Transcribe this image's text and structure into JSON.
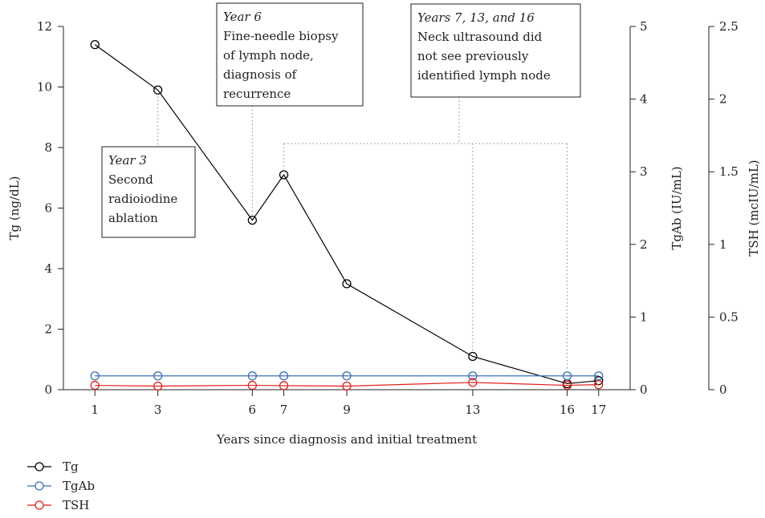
{
  "chart_data": {
    "type": "line",
    "xlabel": "Years since diagnosis and initial treatment",
    "x": [
      1,
      3,
      6,
      7,
      9,
      13,
      16,
      17
    ],
    "xticks": [
      "1",
      "3",
      "6",
      "7",
      "9",
      "13",
      "16",
      "17"
    ],
    "xlim": [
      0,
      18
    ],
    "axes": {
      "left": {
        "label": "Tg (ng/dL)",
        "ylim": [
          0,
          12
        ],
        "ticks": [
          "0",
          "2",
          "4",
          "6",
          "8",
          "10",
          "12"
        ]
      },
      "right1": {
        "label": "TgAb (IU/mL)",
        "ylim": [
          0,
          5
        ],
        "ticks": [
          "0",
          "1",
          "2",
          "3",
          "4",
          "5"
        ]
      },
      "right2": {
        "label": "TSH (mcIU/mL)",
        "ylim": [
          0,
          2.5
        ],
        "ticks": [
          "0",
          "0.5",
          "1",
          "1.5",
          "2",
          "2.5"
        ]
      }
    },
    "series": [
      {
        "name": "Tg",
        "axis": "left",
        "color": "#000000",
        "values": [
          11.4,
          9.9,
          5.6,
          7.1,
          3.5,
          1.1,
          0.2,
          0.3
        ]
      },
      {
        "name": "TgAb",
        "axis": "right1",
        "color": "#3a6fb5",
        "values": [
          0.19,
          0.19,
          0.19,
          0.19,
          0.19,
          0.19,
          0.19,
          0.19
        ]
      },
      {
        "name": "TSH",
        "axis": "right2",
        "color": "#e0201b",
        "values": [
          0.03,
          0.025,
          0.03,
          0.028,
          0.025,
          0.05,
          0.03,
          0.035
        ]
      }
    ],
    "annotations": [
      {
        "title": "Year 3",
        "lines": [
          "Second",
          "radioiodine",
          "ablation"
        ],
        "x_refs": [
          3
        ]
      },
      {
        "title": "Year 6",
        "lines": [
          "Fine-needle biopsy",
          "of lymph node,",
          "diagnosis of",
          "recurrence"
        ],
        "x_refs": [
          6
        ]
      },
      {
        "title": "Years 7, 13, and 16",
        "lines": [
          "Neck ultrasound did",
          "not see previously",
          "identified lymph node"
        ],
        "x_refs": [
          7,
          13,
          16
        ]
      }
    ],
    "legend_position": "bottom-left",
    "grid": false
  }
}
